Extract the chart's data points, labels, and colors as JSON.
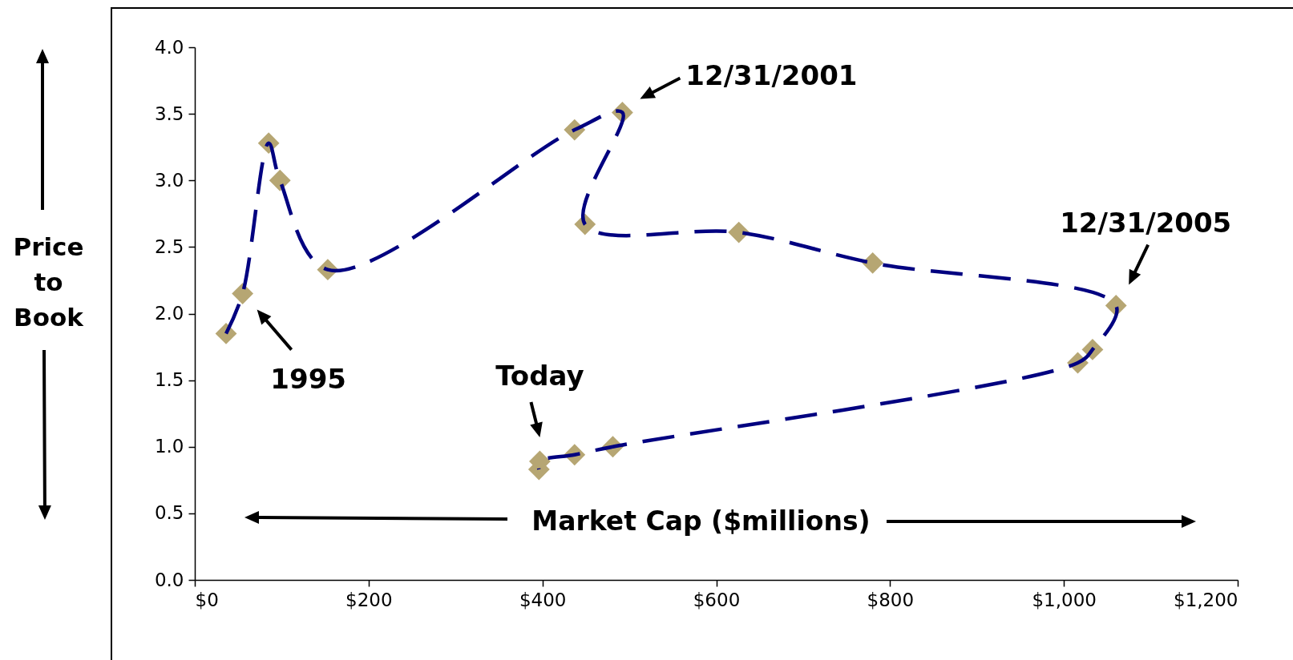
{
  "chart_data": {
    "type": "line",
    "xlabel": "Market Cap ($millions)",
    "ylabel": "Price to Book",
    "x": [
      36,
      55,
      85,
      98,
      153,
      437,
      492,
      449,
      626,
      780,
      1060,
      1033,
      1016,
      481,
      437,
      397,
      396
    ],
    "series": [
      {
        "color": "#000080",
        "values": [
          1.85,
          2.15,
          3.28,
          3.0,
          2.33,
          3.38,
          3.51,
          2.67,
          2.61,
          2.38,
          2.06,
          1.73,
          1.63,
          1.0,
          0.94,
          0.89,
          0.83
        ]
      },
      {
        "type": "scatter",
        "color": "#b6a673",
        "marker": "diamond",
        "values": [
          1.85,
          2.15,
          3.28,
          3.0,
          2.33,
          3.38,
          3.51,
          2.67,
          2.61,
          2.38,
          2.06,
          1.73,
          1.63,
          1.0,
          0.94,
          0.89,
          0.83
        ]
      }
    ],
    "line_style": "dashed",
    "xlim": [
      0,
      1200
    ],
    "xticks": [
      {
        "value": 0,
        "label": "$0"
      },
      {
        "value": 200,
        "label": "$200"
      },
      {
        "value": 400,
        "label": "$400"
      },
      {
        "value": 600,
        "label": "$600"
      },
      {
        "value": 800,
        "label": "$800"
      },
      {
        "value": 1000,
        "label": "$1,000"
      },
      {
        "value": 1200,
        "label": "$1,200"
      }
    ],
    "ylim": [
      0,
      4
    ],
    "yticks": [
      {
        "value": 0,
        "label": "0.0"
      },
      0.5,
      {
        "value": 1,
        "label": "1.0"
      },
      1.5,
      {
        "value": 2,
        "label": "2.0"
      },
      2.5,
      {
        "value": 3,
        "label": "3.0"
      },
      3.5,
      {
        "value": 4,
        "label": "4.0"
      }
    ],
    "annotations": [
      {
        "text": "12/31/2001",
        "x": 492,
        "y": 3.51
      },
      {
        "text": "12/31/2005",
        "x": 1060,
        "y": 2.06
      },
      {
        "text": "1995",
        "x": 55,
        "y": 2.15
      },
      {
        "text": "Today",
        "x": 397,
        "y": 0.89
      }
    ]
  }
}
